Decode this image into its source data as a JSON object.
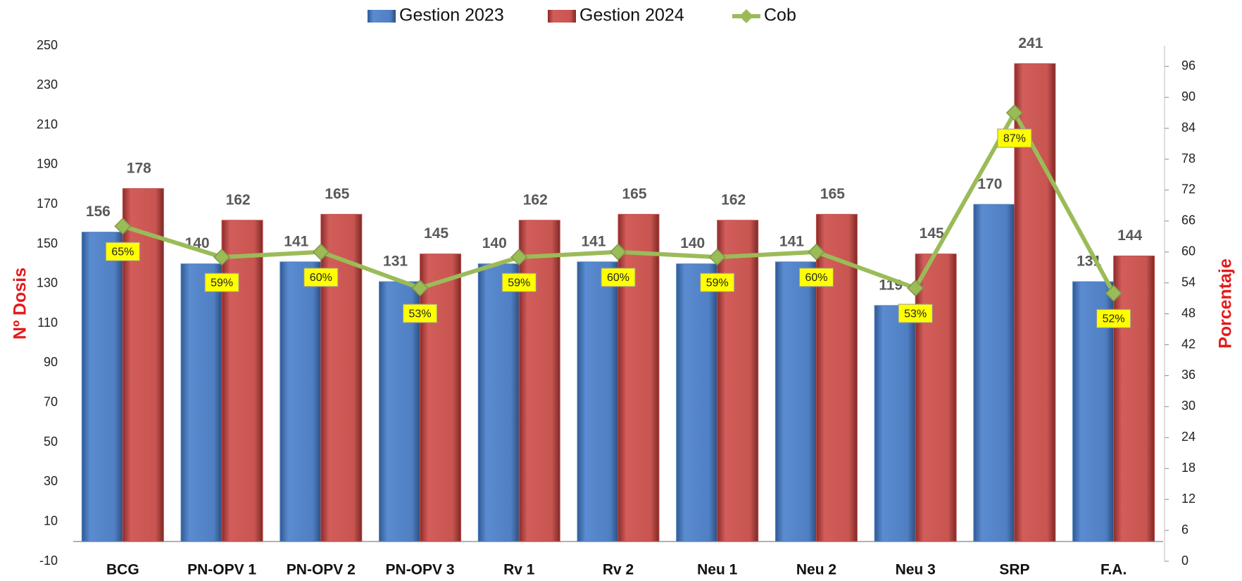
{
  "chart_data": {
    "type": "bar",
    "categories": [
      "BCG",
      "PN-OPV 1",
      "PN-OPV 2",
      "PN-OPV 3",
      "Rv 1",
      "Rv 2",
      "Neu 1",
      "Neu 2",
      "Neu 3",
      "SRP",
      "F.A."
    ],
    "series": [
      {
        "name": "Gestion 2023",
        "color": "#4f81bd",
        "values": [
          156,
          140,
          141,
          131,
          140,
          141,
          140,
          141,
          119,
          170,
          131
        ]
      },
      {
        "name": "Gestion 2024",
        "color": "#c0504d",
        "values": [
          178,
          162,
          165,
          145,
          162,
          165,
          162,
          165,
          145,
          241,
          144
        ]
      },
      {
        "name": "Cob",
        "type": "line",
        "axis": "y2",
        "color": "#9bbb59",
        "values": [
          65,
          59,
          60,
          53,
          59,
          60,
          59,
          60,
          53,
          87,
          52
        ],
        "value_labels": [
          "65%",
          "59%",
          "60%",
          "53%",
          "59%",
          "60%",
          "59%",
          "60%",
          "53%",
          "87%",
          "52%"
        ]
      }
    ],
    "ylabel": "Nº Dosis",
    "y2label": "Porcentaje",
    "ylim": [
      -10,
      250
    ],
    "yticks": [
      -10,
      10,
      30,
      50,
      70,
      90,
      110,
      130,
      150,
      170,
      190,
      210,
      230,
      250
    ],
    "y2lim": [
      0,
      100
    ],
    "y2ticks": [
      0,
      6,
      12,
      18,
      24,
      30,
      36,
      42,
      48,
      54,
      60,
      66,
      72,
      78,
      84,
      90,
      96
    ],
    "legend": "top"
  }
}
